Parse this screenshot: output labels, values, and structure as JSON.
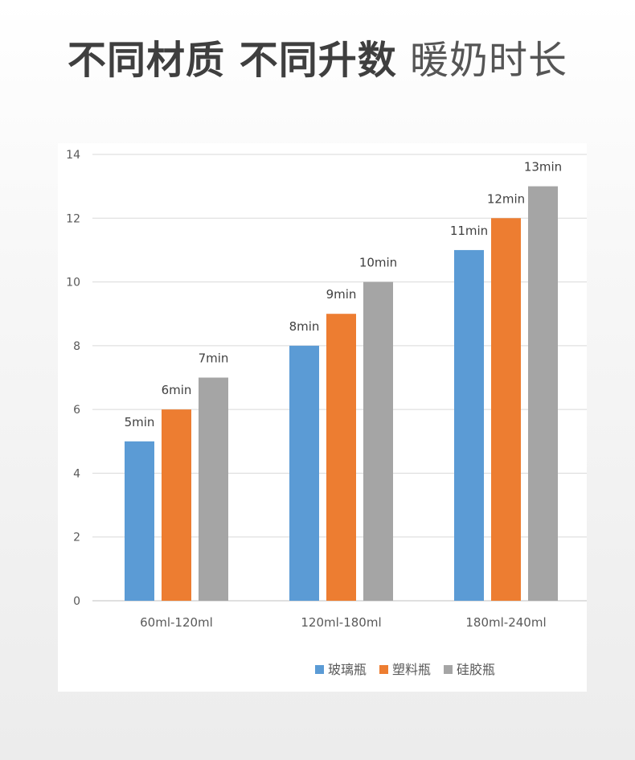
{
  "header": {
    "title_bold": "不同材质 不同升数",
    "title_light": "暖奶时长"
  },
  "chart_data": {
    "type": "bar",
    "title": "",
    "xlabel": "",
    "ylabel": "",
    "categories": [
      "60ml-120ml",
      "120ml-180ml",
      "180ml-240ml"
    ],
    "ylim": [
      0,
      14
    ],
    "yticks": [
      "0",
      "2",
      "4",
      "6",
      "8",
      "10",
      "12",
      "14"
    ],
    "grid": true,
    "legend_position": "bottom-right",
    "series": [
      {
        "name": "玻璃瓶",
        "color": "#5b9bd5",
        "values": [
          5,
          8,
          11
        ],
        "labels": [
          "5min",
          "8min",
          "11min"
        ]
      },
      {
        "name": "塑料瓶",
        "color": "#ed7d31",
        "values": [
          6,
          9,
          12
        ],
        "labels": [
          "6min",
          "9min",
          "12min"
        ]
      },
      {
        "name": "硅胶瓶",
        "color": "#a5a5a5",
        "values": [
          7,
          10,
          13
        ],
        "labels": [
          "7min",
          "10min",
          "13min"
        ]
      }
    ]
  }
}
